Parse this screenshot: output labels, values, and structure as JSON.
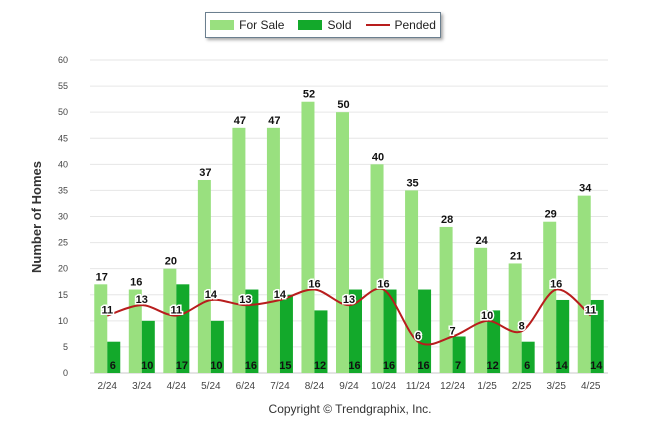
{
  "chart_data": {
    "type": "bar",
    "categories": [
      "2/24",
      "3/24",
      "4/24",
      "5/24",
      "6/24",
      "7/24",
      "8/24",
      "9/24",
      "10/24",
      "11/24",
      "12/24",
      "1/25",
      "2/25",
      "3/25",
      "4/25"
    ],
    "series": [
      {
        "name": "For Sale",
        "type": "bar",
        "color": "#99e07f",
        "values": [
          17,
          16,
          20,
          37,
          47,
          47,
          52,
          50,
          40,
          35,
          28,
          24,
          21,
          29,
          34
        ]
      },
      {
        "name": "Sold",
        "type": "bar",
        "color": "#13a92b",
        "values": [
          6,
          10,
          17,
          10,
          16,
          15,
          12,
          16,
          16,
          16,
          7,
          12,
          6,
          14,
          14
        ]
      },
      {
        "name": "Pended",
        "type": "line",
        "color": "#b81d1d",
        "values": [
          11,
          13,
          11,
          14,
          13,
          14,
          16,
          13,
          16,
          6,
          7,
          10,
          8,
          16,
          11
        ]
      }
    ],
    "ylabel": "Number of Homes",
    "ylim": [
      0,
      60
    ],
    "yticks": [
      0,
      5,
      10,
      15,
      20,
      25,
      30,
      35,
      40,
      45,
      50,
      55,
      60
    ],
    "grid": true,
    "legend_placement": "top-center"
  },
  "footer": {
    "copyright": "Copyright © Trendgraphix, Inc."
  }
}
